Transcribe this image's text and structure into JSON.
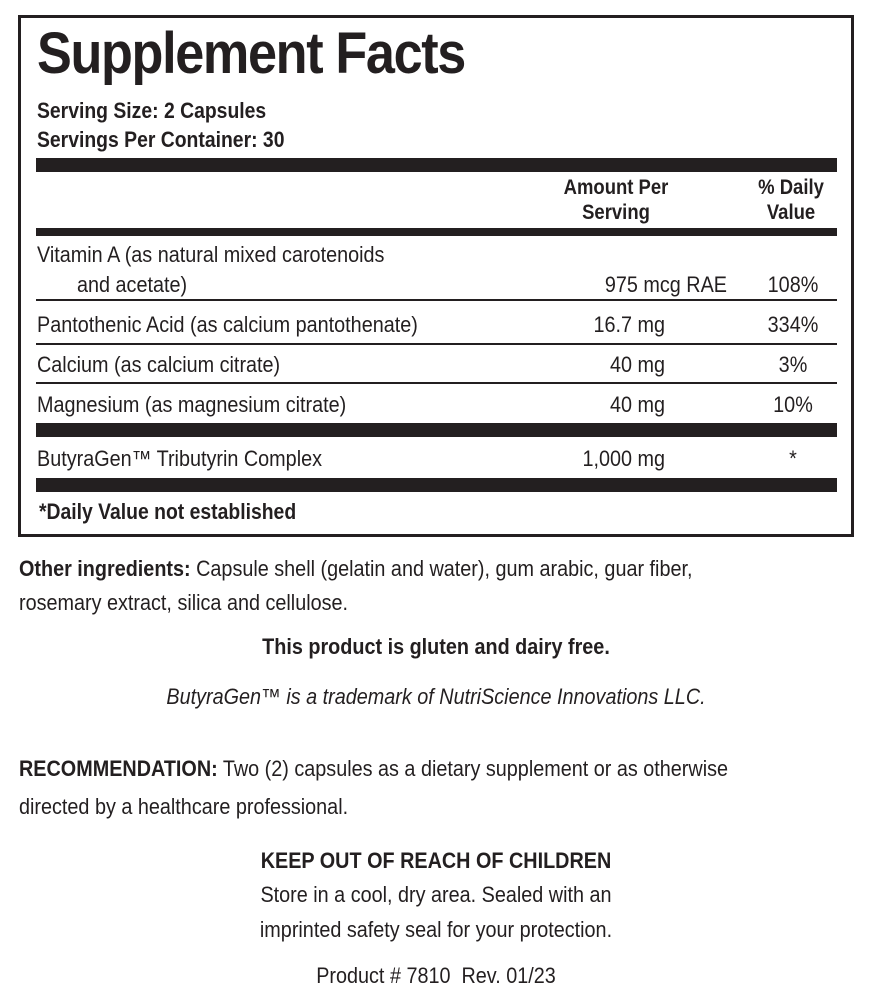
{
  "facts": {
    "title": "Supplement Facts",
    "serving_size": "Serving Size: 2 Capsules",
    "servings_per_container": "Servings Per Container: 30",
    "col_amount": [
      "Amount Per",
      "Serving"
    ],
    "col_dv": [
      "% Daily",
      "Value"
    ],
    "rows": [
      {
        "name": "Vitamin A (as natural mixed carotenoids",
        "name2": "and acetate)",
        "amount": "975 mcg RAE",
        "dv": "108%"
      },
      {
        "name": "Pantothenic Acid (as calcium pantothenate)",
        "amount": "16.7 mg",
        "dv": "334%"
      },
      {
        "name": "Calcium (as calcium citrate)",
        "amount": "40 mg",
        "dv": "3%"
      },
      {
        "name": "Magnesium (as magnesium citrate)",
        "amount": "40 mg",
        "dv": "10%"
      },
      {
        "name": "ButyraGen™ Tributyrin Complex",
        "amount": "1,000 mg",
        "dv": "*"
      }
    ],
    "footnote": "*Daily Value not established"
  },
  "other": {
    "label": "Other ingredients:",
    "text1": " Capsule shell (gelatin and water), gum arabic, guar fiber,",
    "text2": "rosemary extract, silica and cellulose."
  },
  "gluten": "This product is gluten and dairy free.",
  "trademark": "ButyraGen™ is a trademark of NutriScience Innovations LLC.",
  "recommendation": {
    "label": "RECOMMENDATION:",
    "text1": " Two (2) capsules as a dietary supplement or as otherwise",
    "text2": "directed by a healthcare professional."
  },
  "warning": {
    "title": "KEEP OUT OF REACH OF CHILDREN",
    "line1": "Store in a cool, dry area. Sealed with an",
    "line2": "imprinted safety seal for your protection."
  },
  "product": "Product # 7810  Rev. 01/23"
}
